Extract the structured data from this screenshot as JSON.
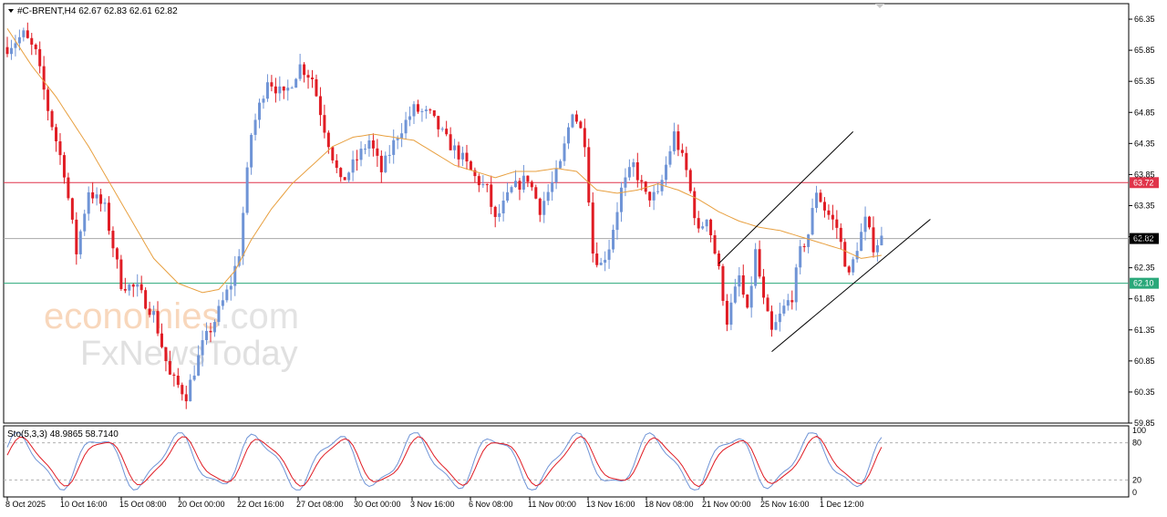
{
  "header": {
    "symbol_line": "#C-BRENT,H4  62.67 62.83 62.61 62.82",
    "indicator_line": "Sto(5,3,3) 48.9865 58.7140"
  },
  "watermark": {
    "brand_part1": "econo",
    "brand_part2": "mies",
    "brand_suffix": ".com",
    "brand_line2": "FxNewsToday"
  },
  "colors": {
    "bull": "#6f94d6",
    "bear": "#e01c24",
    "ma": "#e8a040",
    "resistance": "#e0344a",
    "support": "#2aa87a",
    "current": "#a8a8a8",
    "stoch_main": "#e01c24",
    "stoch_signal": "#6f94d6"
  },
  "chart_data": {
    "type": "candlestick",
    "timeframe": "H4",
    "ylim": [
      59.85,
      66.6
    ],
    "y_ticks": [
      "66.35",
      "65.85",
      "65.35",
      "64.85",
      "64.35",
      "63.85",
      "63.35",
      "62.85",
      "62.35",
      "61.85",
      "61.35",
      "60.85",
      "60.35",
      "59.85"
    ],
    "x_ticks": [
      "8 Oct 2025",
      "10 Oct 16:00",
      "15 Oct 08:00",
      "20 Oct 00:00",
      "22 Oct 16:00",
      "27 Oct 08:00",
      "30 Oct 00:00",
      "3 Nov 16:00",
      "6 Nov 08:00",
      "11 Nov 00:00",
      "13 Nov 16:00",
      "18 Nov 08:00",
      "21 Nov 00:00",
      "25 Nov 16:00",
      "1 Dec 12:00"
    ],
    "price_levels": [
      {
        "value": 63.72,
        "label": "63.72",
        "kind": "resistance"
      },
      {
        "value": 62.82,
        "label": "62.82",
        "kind": "current"
      },
      {
        "value": 62.1,
        "label": "62.10",
        "kind": "support"
      }
    ],
    "price_waypoints": [
      [
        0,
        65.9
      ],
      [
        4,
        66.1
      ],
      [
        7,
        65.8
      ],
      [
        10,
        64.9
      ],
      [
        14,
        63.9
      ],
      [
        17,
        62.6
      ],
      [
        20,
        63.6
      ],
      [
        24,
        63.3
      ],
      [
        28,
        62.1
      ],
      [
        32,
        62.0
      ],
      [
        36,
        61.6
      ],
      [
        40,
        60.6
      ],
      [
        44,
        60.3
      ],
      [
        48,
        61.1
      ],
      [
        51,
        61.5
      ],
      [
        55,
        62.1
      ],
      [
        57,
        62.6
      ],
      [
        60,
        64.5
      ],
      [
        64,
        65.4
      ],
      [
        68,
        65.1
      ],
      [
        72,
        65.6
      ],
      [
        75,
        65.4
      ],
      [
        78,
        64.6
      ],
      [
        82,
        63.7
      ],
      [
        86,
        64.1
      ],
      [
        89,
        64.4
      ],
      [
        92,
        63.9
      ],
      [
        96,
        64.5
      ],
      [
        100,
        64.9
      ],
      [
        104,
        64.8
      ],
      [
        108,
        64.4
      ],
      [
        112,
        64.1
      ],
      [
        115,
        63.8
      ],
      [
        118,
        63.6
      ],
      [
        120,
        63.1
      ],
      [
        124,
        63.6
      ],
      [
        128,
        63.8
      ],
      [
        131,
        63.3
      ],
      [
        134,
        63.7
      ],
      [
        136,
        64.0
      ],
      [
        139,
        64.9
      ],
      [
        142,
        64.4
      ],
      [
        144,
        62.6
      ],
      [
        146,
        62.4
      ],
      [
        148,
        62.7
      ],
      [
        151,
        63.6
      ],
      [
        154,
        64.0
      ],
      [
        157,
        63.5
      ],
      [
        160,
        63.5
      ],
      [
        164,
        64.5
      ],
      [
        167,
        63.9
      ],
      [
        170,
        62.9
      ],
      [
        172,
        63.2
      ],
      [
        175,
        62.3
      ],
      [
        177,
        61.5
      ],
      [
        180,
        62.2
      ],
      [
        182,
        61.6
      ],
      [
        184,
        62.6
      ],
      [
        186,
        61.8
      ],
      [
        188,
        61.3
      ],
      [
        191,
        61.7
      ],
      [
        193,
        61.9
      ],
      [
        195,
        62.6
      ],
      [
        197,
        62.9
      ],
      [
        199,
        63.6
      ],
      [
        201,
        63.3
      ],
      [
        204,
        63.0
      ],
      [
        207,
        62.2
      ],
      [
        209,
        62.7
      ],
      [
        211,
        63.1
      ],
      [
        213,
        62.7
      ],
      [
        215,
        62.82
      ]
    ],
    "ma_waypoints": [
      [
        0,
        66.2
      ],
      [
        6,
        65.6
      ],
      [
        12,
        65.1
      ],
      [
        20,
        64.3
      ],
      [
        28,
        63.4
      ],
      [
        36,
        62.5
      ],
      [
        42,
        62.1
      ],
      [
        48,
        61.95
      ],
      [
        52,
        62.0
      ],
      [
        56,
        62.3
      ],
      [
        60,
        62.8
      ],
      [
        65,
        63.3
      ],
      [
        70,
        63.7
      ],
      [
        75,
        64.0
      ],
      [
        80,
        64.3
      ],
      [
        85,
        64.45
      ],
      [
        90,
        64.5
      ],
      [
        95,
        64.45
      ],
      [
        100,
        64.4
      ],
      [
        105,
        64.2
      ],
      [
        110,
        64.0
      ],
      [
        115,
        63.9
      ],
      [
        120,
        63.8
      ],
      [
        125,
        63.9
      ],
      [
        130,
        63.9
      ],
      [
        135,
        63.95
      ],
      [
        140,
        63.9
      ],
      [
        145,
        63.6
      ],
      [
        150,
        63.55
      ],
      [
        155,
        63.6
      ],
      [
        160,
        63.7
      ],
      [
        165,
        63.6
      ],
      [
        170,
        63.45
      ],
      [
        175,
        63.25
      ],
      [
        180,
        63.1
      ],
      [
        185,
        63.0
      ],
      [
        190,
        62.95
      ],
      [
        195,
        62.85
      ],
      [
        200,
        62.75
      ],
      [
        205,
        62.65
      ],
      [
        210,
        62.5
      ],
      [
        215,
        62.55
      ]
    ],
    "channel": {
      "upper": [
        [
          175,
          62.42
        ],
        [
          208,
          64.54
        ]
      ],
      "lower": [
        [
          188,
          61.0
        ],
        [
          227,
          63.13
        ]
      ]
    },
    "stochastic": {
      "ylim": [
        0,
        100
      ],
      "levels": [
        80,
        20
      ],
      "y_tick_labels": [
        "100",
        "80",
        "20",
        "0"
      ]
    }
  }
}
